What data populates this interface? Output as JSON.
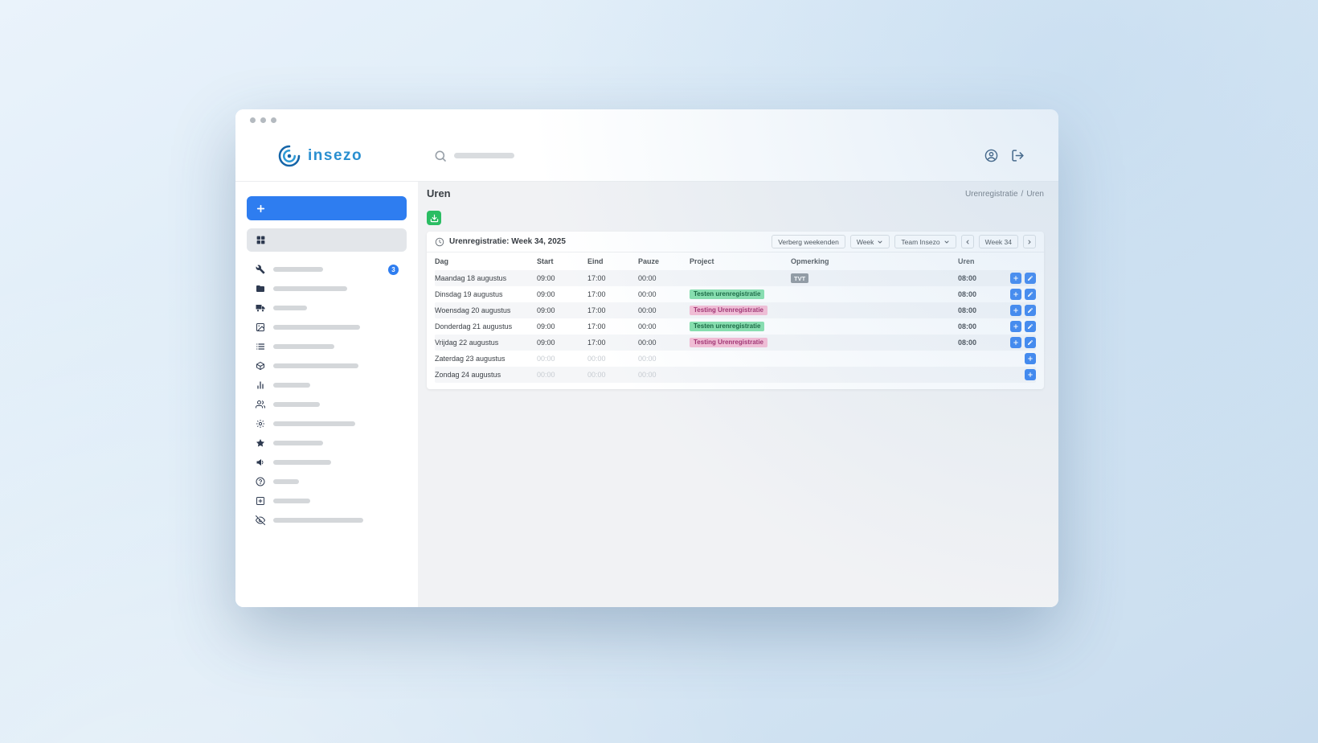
{
  "window": {
    "controls": [
      "dot",
      "dot",
      "dot"
    ]
  },
  "header": {
    "logo_text": "insezo",
    "logo_icon": "insezo-logo-icon",
    "search_icon": "search-icon",
    "account_icon": "user-icon",
    "logout_icon": "logout-icon"
  },
  "sidebar": {
    "add_button": {
      "icon": "plus-icon"
    },
    "dashboard_item": {
      "icon": "dashboard-icon",
      "selected": true
    },
    "items": [
      {
        "icon": "wrench-icon",
        "skeleton_width": 62,
        "badge": "3"
      },
      {
        "icon": "folder-icon",
        "skeleton_width": 92
      },
      {
        "icon": "truck-icon",
        "skeleton_width": 42
      },
      {
        "icon": "image-icon",
        "skeleton_width": 108
      },
      {
        "icon": "list-icon",
        "skeleton_width": 76
      },
      {
        "icon": "box-icon",
        "skeleton_width": 106
      },
      {
        "icon": "chart-icon",
        "skeleton_width": 46
      },
      {
        "icon": "users-icon",
        "skeleton_width": 58
      },
      {
        "icon": "gear-icon",
        "skeleton_width": 102
      },
      {
        "icon": "star-icon",
        "skeleton_width": 62
      },
      {
        "icon": "megaphone-icon",
        "skeleton_width": 72
      },
      {
        "icon": "help-icon",
        "skeleton_width": 32
      },
      {
        "icon": "plus-square-icon",
        "skeleton_width": 46
      },
      {
        "icon": "eye-off-icon",
        "skeleton_width": 112
      }
    ]
  },
  "main": {
    "page_title": "Uren",
    "breadcrumb": [
      "Urenregistratie",
      "Uren"
    ],
    "breadcrumb_separator": "/",
    "download_icon": "download-icon",
    "card": {
      "icon": "clock-icon",
      "title": "Urenregistratie: Week 34, 2025",
      "controls": {
        "hide_weekends": "Verberg weekenden",
        "period_select": "Week",
        "team_select": "Team Insezo",
        "week_label": "Week 34",
        "caret_icon": "chevron-down-icon",
        "prev_icon": "chevron-left-icon",
        "next_icon": "chevron-right-icon"
      },
      "table": {
        "columns": [
          "Dag",
          "Start",
          "Eind",
          "Pauze",
          "Project",
          "Opmerking",
          "Uren"
        ],
        "rows": [
          {
            "dag": "Maandag 18 augustus",
            "start": "09:00",
            "eind": "17:00",
            "pauze": "00:00",
            "project": null,
            "opmerking": {
              "text": "TVT",
              "style": "gray"
            },
            "uren": "08:00",
            "actions": [
              "add",
              "edit"
            ],
            "weekend": false
          },
          {
            "dag": "Dinsdag 19 augustus",
            "start": "09:00",
            "eind": "17:00",
            "pauze": "00:00",
            "project": {
              "text": "Testen urenregistratie",
              "style": "green"
            },
            "opmerking": null,
            "uren": "08:00",
            "actions": [
              "add",
              "edit"
            ],
            "weekend": false
          },
          {
            "dag": "Woensdag 20 augustus",
            "start": "09:00",
            "eind": "17:00",
            "pauze": "00:00",
            "project": {
              "text": "Testing Urenregistratie",
              "style": "pink"
            },
            "opmerking": null,
            "uren": "08:00",
            "actions": [
              "add",
              "edit"
            ],
            "weekend": false
          },
          {
            "dag": "Donderdag 21 augustus",
            "start": "09:00",
            "eind": "17:00",
            "pauze": "00:00",
            "project": {
              "text": "Testen urenregistratie",
              "style": "green"
            },
            "opmerking": null,
            "uren": "08:00",
            "actions": [
              "add",
              "edit"
            ],
            "weekend": false
          },
          {
            "dag": "Vrijdag 22 augustus",
            "start": "09:00",
            "eind": "17:00",
            "pauze": "00:00",
            "project": {
              "text": "Testing Urenregistratie",
              "style": "pink"
            },
            "opmerking": null,
            "uren": "08:00",
            "actions": [
              "add",
              "edit"
            ],
            "weekend": false
          },
          {
            "dag": "Zaterdag 23 augustus",
            "start": "00:00",
            "eind": "00:00",
            "pauze": "00:00",
            "project": null,
            "opmerking": null,
            "uren": "",
            "actions": [
              "add"
            ],
            "weekend": true
          },
          {
            "dag": "Zondag 24 augustus",
            "start": "00:00",
            "eind": "00:00",
            "pauze": "00:00",
            "project": null,
            "opmerking": null,
            "uren": "",
            "actions": [
              "add"
            ],
            "weekend": true
          }
        ]
      }
    }
  },
  "colors": {
    "accent_blue": "#2e7df0",
    "download_green": "#2bbd63",
    "logo_blue": "#2a8fd0",
    "badge_green_bg": "#84dfab",
    "badge_green_text": "#116339",
    "badge_pink_bg": "#f4bcd4",
    "badge_pink_text": "#a02c6c",
    "badge_gray_bg": "#8e959c",
    "badge_gray_text": "#ffffff"
  }
}
